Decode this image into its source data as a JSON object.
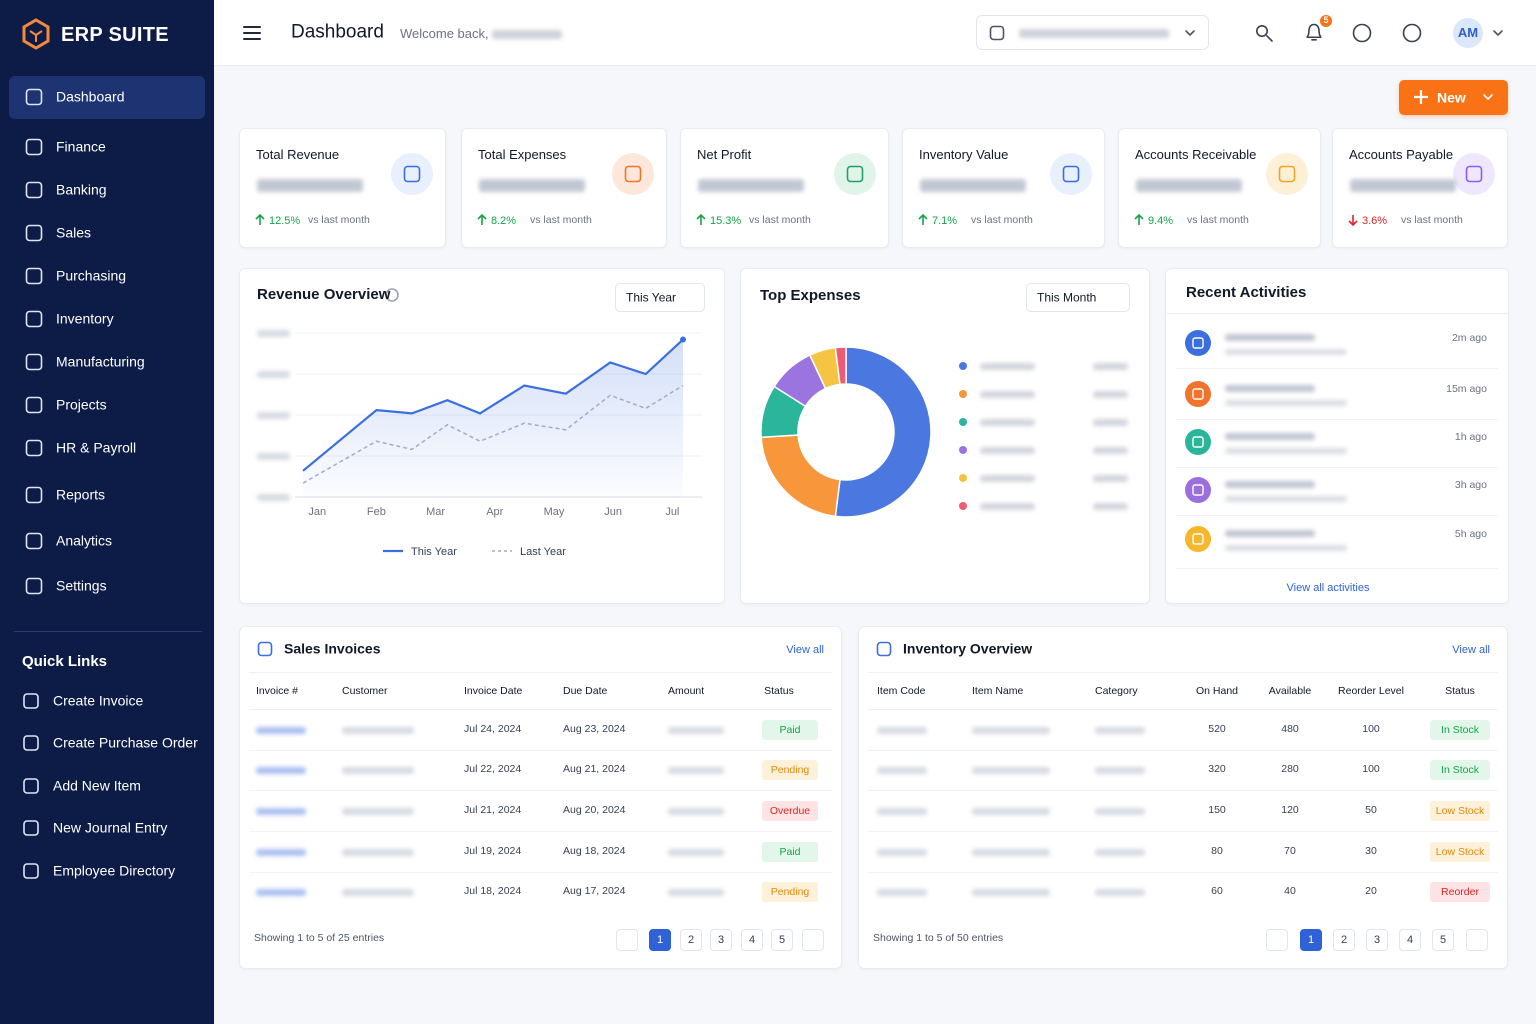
{
  "sidebar": {
    "brand": "ERP SUITE",
    "nav": [
      "Dashboard",
      "Finance",
      "Banking",
      "Sales",
      "Purchasing",
      "Inventory",
      "Manufacturing",
      "Projects",
      "HR & Payroll",
      "Reports",
      "Analytics",
      "Settings"
    ],
    "quick_links_title": "Quick Links",
    "quick_links": [
      "Create Invoice",
      "Create Purchase Order",
      "Add New Item",
      "New Journal Entry",
      "Employee Directory"
    ]
  },
  "header": {
    "title": "Dashboard",
    "welcome": "Welcome back,",
    "notification_count": 5,
    "avatar": "AM"
  },
  "new_button": "New",
  "kpis": [
    {
      "title": "Total Revenue",
      "change": "12.5%",
      "direction": "up",
      "compare": "vs last month",
      "color": "#3b6fe0",
      "bg": "#e8effd"
    },
    {
      "title": "Total Expenses",
      "change": "8.2%",
      "direction": "up",
      "compare": "vs last month",
      "color": "#f0742c",
      "bg": "#fde7da"
    },
    {
      "title": "Net Profit",
      "change": "15.3%",
      "direction": "up",
      "compare": "vs last month",
      "color": "#22a06b",
      "bg": "#e1f4ea"
    },
    {
      "title": "Inventory Value",
      "change": "7.1%",
      "direction": "up",
      "compare": "vs last month",
      "color": "#3b6fe0",
      "bg": "#e8effd"
    },
    {
      "title": "Accounts Receivable",
      "change": "9.4%",
      "direction": "up",
      "compare": "vs last month",
      "color": "#f0a623",
      "bg": "#fdf0d6"
    },
    {
      "title": "Accounts Payable",
      "change": "3.6%",
      "direction": "down",
      "compare": "vs last month",
      "color": "#8b5cf6",
      "bg": "#efe8fc"
    }
  ],
  "chart_data": [
    {
      "type": "line",
      "title": "Revenue Overview",
      "filter": "This Year",
      "x": [
        -0.24,
        1,
        1.6,
        2.2,
        2.75,
        3.5,
        4.2,
        4.95,
        5.55,
        6.18
      ],
      "xlim": [
        -0.24,
        6.18
      ],
      "xticks": [
        {
          "value": 0,
          "label": "Jan"
        },
        {
          "value": 1,
          "label": "Feb"
        },
        {
          "value": 2,
          "label": "Mar"
        },
        {
          "value": 3,
          "label": "Apr"
        },
        {
          "value": 4,
          "label": "May"
        },
        {
          "value": 5,
          "label": "Jun"
        },
        {
          "value": 6,
          "label": "Jul"
        }
      ],
      "ylim": [
        0,
        100
      ],
      "yticks": [
        0,
        25,
        50,
        75,
        100
      ],
      "grid": true,
      "series": [
        {
          "name": "This Year",
          "color": "#3b6fe0",
          "values": [
            16,
            53,
            51,
            59,
            51,
            68,
            63,
            82,
            75,
            96
          ]
        },
        {
          "name": "Last Year",
          "color": "#a3acc2",
          "dashed": true,
          "values": [
            8.5,
            34,
            29,
            44,
            34,
            45,
            41,
            62,
            54,
            68
          ]
        }
      ]
    },
    {
      "type": "pie",
      "title": "Top Expenses",
      "filter": "This Month",
      "donut": true,
      "values": [
        52,
        22,
        10,
        9,
        5,
        2
      ],
      "colors": [
        "#4a78e0",
        "#f7963a",
        "#2bb59a",
        "#9b74e0",
        "#f6c443",
        "#ee5b74"
      ]
    }
  ],
  "activities": {
    "title": "Recent Activities",
    "items": [
      {
        "time": "2m ago",
        "color": "#3b6fe0"
      },
      {
        "time": "15m ago",
        "color": "#f0742c"
      },
      {
        "time": "1h ago",
        "color": "#2bb59a"
      },
      {
        "time": "3h ago",
        "color": "#9b6fe0"
      },
      {
        "time": "5h ago",
        "color": "#f6b72b"
      }
    ],
    "link": "View all activities"
  },
  "sales_invoices": {
    "title": "Sales Invoices",
    "link": "View all",
    "columns": [
      "Invoice #",
      "Customer",
      "Invoice Date",
      "Due Date",
      "Amount",
      "Status"
    ],
    "rows": [
      [
        null,
        null,
        "Jul 24, 2024",
        "Aug 23, 2024",
        null,
        "Paid"
      ],
      [
        null,
        null,
        "Jul 22, 2024",
        "Aug 21, 2024",
        null,
        "Pending"
      ],
      [
        null,
        null,
        "Jul 21, 2024",
        "Aug 20, 2024",
        null,
        "Overdue"
      ],
      [
        null,
        null,
        "Jul 19, 2024",
        "Aug 18, 2024",
        null,
        "Paid"
      ],
      [
        null,
        null,
        "Jul 18, 2024",
        "Aug 17, 2024",
        null,
        "Pending"
      ]
    ],
    "status_tones": [
      "green",
      "orange",
      "red",
      "green",
      "orange"
    ],
    "footer": "Showing 1 to 5 of 25 entries",
    "pages": [
      1,
      2,
      3,
      4,
      5
    ]
  },
  "inventory": {
    "title": "Inventory Overview",
    "link": "View all",
    "columns": [
      "Item Code",
      "Item Name",
      "Category",
      "On Hand",
      "Available",
      "Reorder Level",
      "Status"
    ],
    "rows": [
      [
        null,
        null,
        null,
        520,
        480,
        100,
        "In Stock"
      ],
      [
        null,
        null,
        null,
        320,
        280,
        100,
        "In Stock"
      ],
      [
        null,
        null,
        null,
        150,
        120,
        50,
        "Low Stock"
      ],
      [
        null,
        null,
        null,
        80,
        70,
        30,
        "Low Stock"
      ],
      [
        null,
        null,
        null,
        60,
        40,
        20,
        "Reorder"
      ]
    ],
    "status_tones": [
      "green",
      "green",
      "orange",
      "orange",
      "red"
    ],
    "footer": "Showing 1 to 5 of 50 entries",
    "pages": [
      1,
      2,
      3,
      4,
      5
    ]
  }
}
